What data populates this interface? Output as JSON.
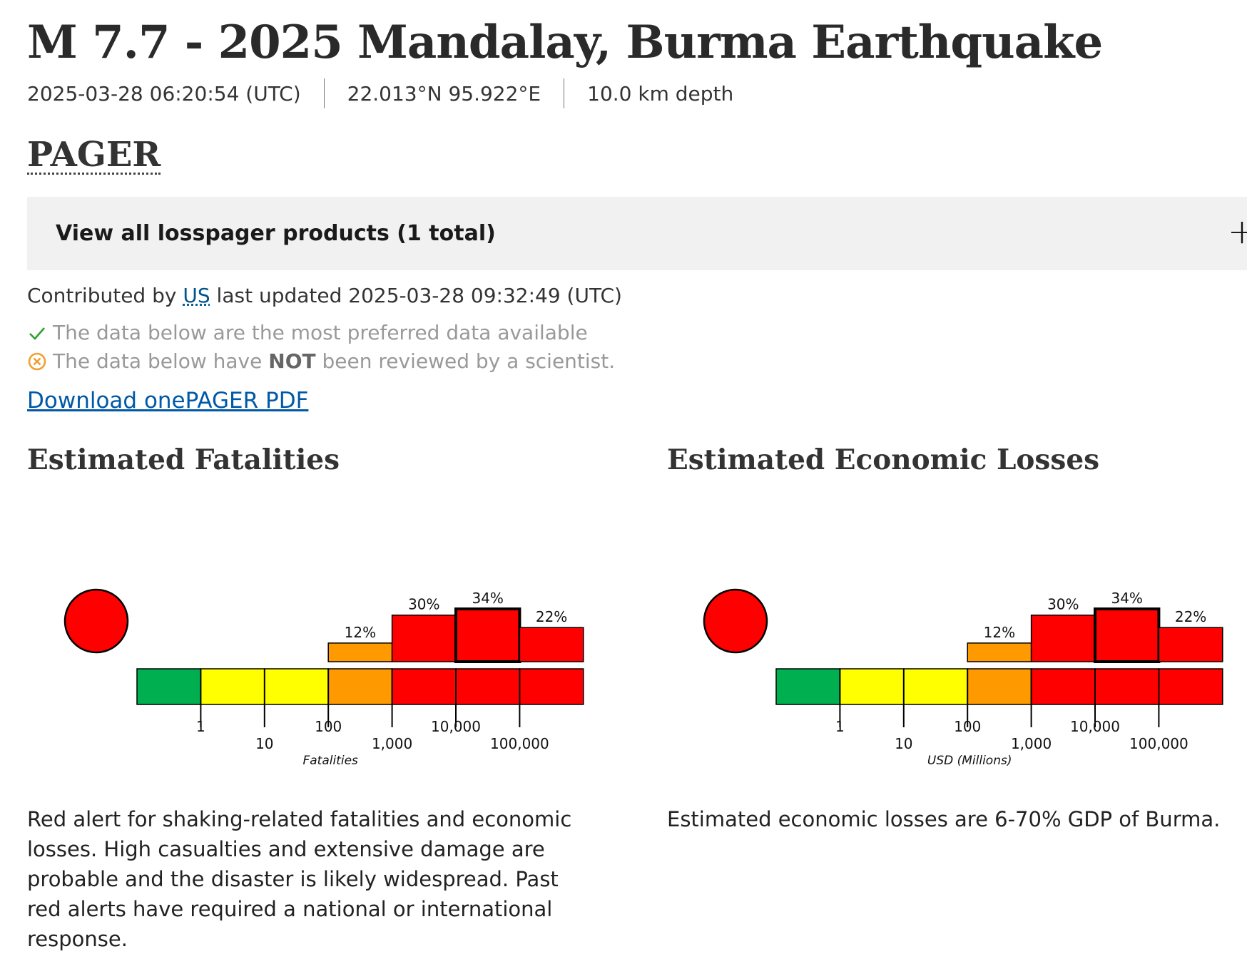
{
  "event": {
    "title": "M 7.7 - 2025 Mandalay, Burma Earthquake",
    "time": "2025-03-28 06:20:54 (UTC)",
    "location": "22.013°N 95.922°E",
    "depth": "10.0 km depth"
  },
  "section": {
    "title": "PAGER",
    "accordion_label": "View all losspager products (1 total)",
    "accordion_icon": "plus-icon",
    "contributed_prefix": "Contributed by",
    "contributor": "US",
    "updated": "last updated 2025-03-28 09:32:49 (UTC)",
    "status_preferred": "The data below are the most preferred data available",
    "status_review_before": "The data below have",
    "status_review_bold": "NOT",
    "status_review_after": "been reviewed by a scientist.",
    "download_label": "Download onePAGER PDF"
  },
  "colors": {
    "green": "#00b050",
    "yellow": "#ffff00",
    "orange": "#ff9900",
    "red": "#ff0000",
    "check": "#2e9e2e",
    "warn": "#f0a030",
    "link": "#0059a6"
  },
  "fatalities": {
    "title": "Estimated Fatalities",
    "alert_color": "#ff0000",
    "chart_data": {
      "type": "bar",
      "categories": [
        "0-1",
        "1-10",
        "10-100",
        "100-1,000",
        "1,000-10,000",
        "10,000-100,000",
        "100,000+"
      ],
      "values": [
        0,
        0,
        0,
        12,
        30,
        34,
        22
      ],
      "value_labels": [
        "",
        "",
        "",
        "12%",
        "30%",
        "34%",
        "22%"
      ],
      "highlight_index": 5,
      "scale_colors": [
        "#00b050",
        "#ffff00",
        "#ffff00",
        "#ff9900",
        "#ff0000",
        "#ff0000",
        "#ff0000"
      ],
      "tick_labels": [
        "1",
        "10",
        "100",
        "1,000",
        "10,000",
        "100,000"
      ],
      "xlabel": "Fatalities",
      "ylim": [
        0,
        34
      ]
    },
    "description": "Red alert for shaking-related fatalities and economic losses. High casualties and extensive damage are probable and the disaster is likely widespread. Past red alerts have required a national or international response."
  },
  "economic": {
    "title": "Estimated Economic Losses",
    "alert_color": "#ff0000",
    "chart_data": {
      "type": "bar",
      "categories": [
        "0-1",
        "1-10",
        "10-100",
        "100-1,000",
        "1,000-10,000",
        "10,000-100,000",
        "100,000+"
      ],
      "values": [
        0,
        0,
        0,
        12,
        30,
        34,
        22
      ],
      "value_labels": [
        "",
        "",
        "",
        "12%",
        "30%",
        "34%",
        "22%"
      ],
      "highlight_index": 5,
      "scale_colors": [
        "#00b050",
        "#ffff00",
        "#ffff00",
        "#ff9900",
        "#ff0000",
        "#ff0000",
        "#ff0000"
      ],
      "tick_labels": [
        "1",
        "10",
        "100",
        "1,000",
        "10,000",
        "100,000"
      ],
      "xlabel": "USD (Millions)",
      "ylim": [
        0,
        34
      ]
    },
    "description": "Estimated economic losses are 6-70% GDP of Burma."
  }
}
